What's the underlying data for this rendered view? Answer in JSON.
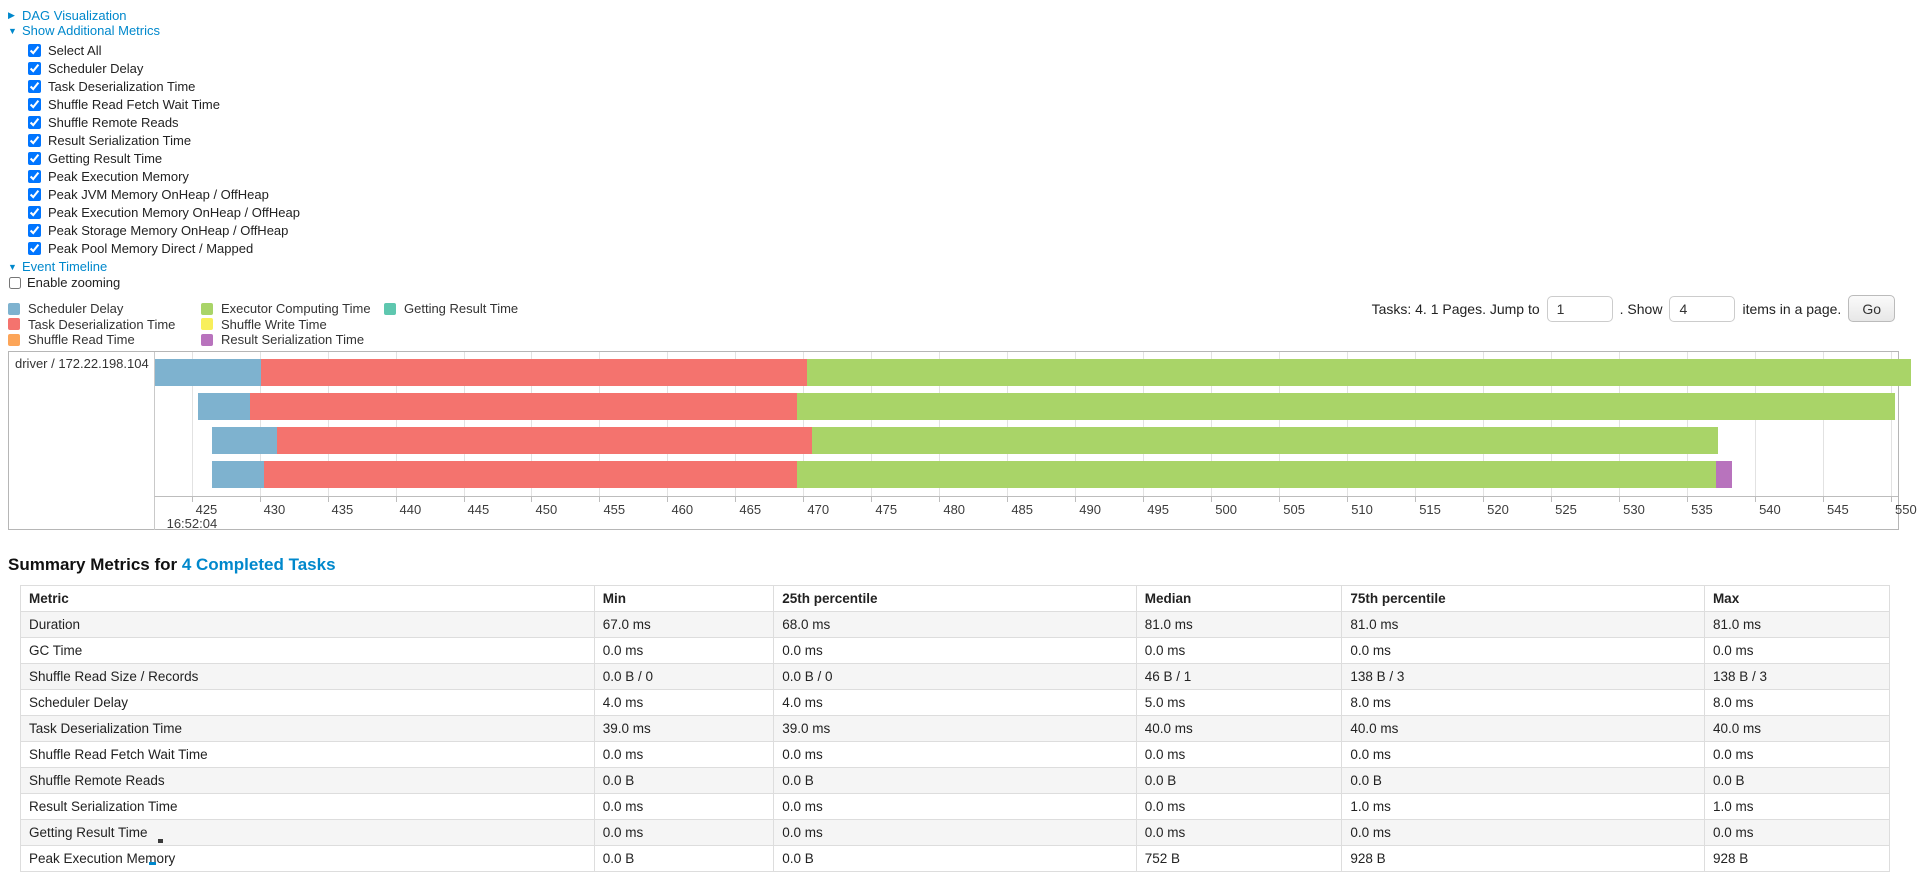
{
  "controls": {
    "dag": {
      "label": "DAG Visualization",
      "arrow": "▶"
    },
    "metrics_panel": {
      "label": "Show Additional Metrics",
      "arrow": "▼",
      "items": [
        {
          "label": "Select All",
          "checked": true
        },
        {
          "label": "Scheduler Delay",
          "checked": true
        },
        {
          "label": "Task Deserialization Time",
          "checked": true
        },
        {
          "label": "Shuffle Read Fetch Wait Time",
          "checked": true
        },
        {
          "label": "Shuffle Remote Reads",
          "checked": true
        },
        {
          "label": "Result Serialization Time",
          "checked": true
        },
        {
          "label": "Getting Result Time",
          "checked": true
        },
        {
          "label": "Peak Execution Memory",
          "checked": true
        },
        {
          "label": "Peak JVM Memory OnHeap / OffHeap",
          "checked": true
        },
        {
          "label": "Peak Execution Memory OnHeap / OffHeap",
          "checked": true
        },
        {
          "label": "Peak Storage Memory OnHeap / OffHeap",
          "checked": true
        },
        {
          "label": "Peak Pool Memory Direct / Mapped",
          "checked": true
        }
      ]
    },
    "event_timeline": {
      "label": "Event Timeline",
      "arrow": "▼"
    },
    "enable_zooming": {
      "label": "Enable zooming",
      "checked": false
    }
  },
  "colors": {
    "scheduler_delay": "#7EB2CF",
    "task_deserialization": "#F4736E",
    "shuffle_read": "#FCA559",
    "executor_computing": "#A9D468",
    "shuffle_write": "#F8EF5B",
    "result_serialization": "#B873BD",
    "getting_result": "#5EC7AF",
    "link": "#0088CC"
  },
  "legend": [
    {
      "label": "Scheduler Delay",
      "color_key": "scheduler_delay"
    },
    {
      "label": "Task Deserialization Time",
      "color_key": "task_deserialization"
    },
    {
      "label": "Shuffle Read Time",
      "color_key": "shuffle_read"
    },
    {
      "label": "Executor Computing Time",
      "color_key": "executor_computing"
    },
    {
      "label": "Shuffle Write Time",
      "color_key": "shuffle_write"
    },
    {
      "label": "Result Serialization Time",
      "color_key": "result_serialization"
    },
    {
      "label": "Getting Result Time",
      "color_key": "getting_result"
    }
  ],
  "pagination": {
    "prefix": "Tasks: 4. 1 Pages. Jump to",
    "jump_value": "1",
    "middle": ". Show",
    "show_value": "4",
    "suffix": "items in a page.",
    "go_label": "Go"
  },
  "chart_data": {
    "type": "timeline-gantt",
    "group_label": "driver / 172.22.198.104",
    "axis": {
      "min": 425,
      "max": 550,
      "step": 5,
      "time_label": "16:52:04",
      "unit": "ms within 16:52:04"
    },
    "tasks": [
      {
        "segments": [
          {
            "key": "scheduler_delay",
            "from": 422.3,
            "to": 430.1
          },
          {
            "key": "task_deserialization",
            "from": 430.1,
            "to": 470.3
          },
          {
            "key": "executor_computing",
            "from": 470.3,
            "to": 551.5
          }
        ]
      },
      {
        "segments": [
          {
            "key": "scheduler_delay",
            "from": 425.5,
            "to": 429.3
          },
          {
            "key": "task_deserialization",
            "from": 429.3,
            "to": 469.5
          },
          {
            "key": "executor_computing",
            "from": 469.5,
            "to": 550.3
          }
        ]
      },
      {
        "segments": [
          {
            "key": "scheduler_delay",
            "from": 426.5,
            "to": 431.3
          },
          {
            "key": "task_deserialization",
            "from": 431.3,
            "to": 470.6
          },
          {
            "key": "executor_computing",
            "from": 470.6,
            "to": 537.3
          }
        ]
      },
      {
        "segments": [
          {
            "key": "scheduler_delay",
            "from": 426.5,
            "to": 430.3
          },
          {
            "key": "task_deserialization",
            "from": 430.3,
            "to": 469.5
          },
          {
            "key": "executor_computing",
            "from": 469.5,
            "to": 537.1
          },
          {
            "key": "result_serialization",
            "from": 537.1,
            "to": 538.3
          }
        ]
      }
    ]
  },
  "summary": {
    "title_prefix": "Summary Metrics for ",
    "title_link": "4 Completed Tasks",
    "table": {
      "headers": [
        "Metric",
        "Min",
        "25th percentile",
        "Median",
        "75th percentile",
        "Max"
      ],
      "rows": [
        [
          "Duration",
          "67.0 ms",
          "68.0 ms",
          "81.0 ms",
          "81.0 ms",
          "81.0 ms"
        ],
        [
          "GC Time",
          "0.0 ms",
          "0.0 ms",
          "0.0 ms",
          "0.0 ms",
          "0.0 ms"
        ],
        [
          "Shuffle Read Size / Records",
          "0.0 B / 0",
          "0.0 B / 0",
          "46 B / 1",
          "138 B / 3",
          "138 B / 3"
        ],
        [
          "Scheduler Delay",
          "4.0 ms",
          "4.0 ms",
          "5.0 ms",
          "8.0 ms",
          "8.0 ms"
        ],
        [
          "Task Deserialization Time",
          "39.0 ms",
          "39.0 ms",
          "40.0 ms",
          "40.0 ms",
          "40.0 ms"
        ],
        [
          "Shuffle Read Fetch Wait Time",
          "0.0 ms",
          "0.0 ms",
          "0.0 ms",
          "0.0 ms",
          "0.0 ms"
        ],
        [
          "Shuffle Remote Reads",
          "0.0 B",
          "0.0 B",
          "0.0 B",
          "0.0 B",
          "0.0 B"
        ],
        [
          "Result Serialization Time",
          "0.0 ms",
          "0.0 ms",
          "0.0 ms",
          "1.0 ms",
          "1.0 ms"
        ],
        [
          "Getting Result Time",
          "0.0 ms",
          "0.0 ms",
          "0.0 ms",
          "0.0 ms",
          "0.0 ms"
        ],
        [
          "Peak Execution Memory",
          "0.0 B",
          "0.0 B",
          "752 B",
          "928 B",
          "928 B"
        ]
      ]
    }
  }
}
